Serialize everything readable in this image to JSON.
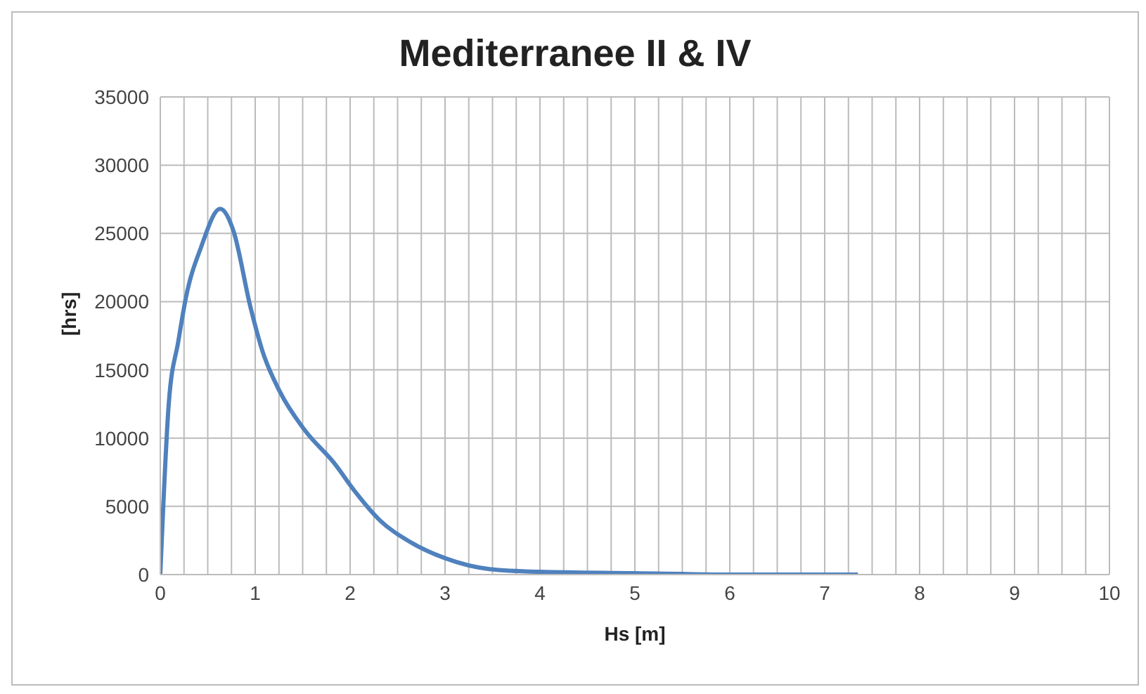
{
  "chart_data": {
    "type": "line",
    "title": "Mediterranee II & IV",
    "xlabel": "Hs [m]",
    "ylabel": "[hrs]",
    "series": [
      {
        "color": "#4f81bd",
        "x": [
          0,
          0.09,
          0.19,
          0.27,
          0.43,
          0.63,
          0.77,
          0.95,
          1.08,
          1.26,
          1.52,
          1.84,
          2.05,
          2.31,
          2.63,
          3.0,
          3.47,
          4.0,
          5.0,
          6.0,
          7.35
        ],
        "values": [
          0,
          12600,
          17100,
          20300,
          24000,
          26800,
          25200,
          19600,
          16300,
          13400,
          10600,
          8100,
          6100,
          4000,
          2400,
          1200,
          400,
          200,
          100,
          0,
          0
        ]
      }
    ],
    "xlim": [
      0,
      10
    ],
    "ylim": [
      0,
      35000
    ],
    "xticks": [
      0,
      {
        "value": 0.25,
        "label": null
      },
      {
        "value": 0.5,
        "label": null
      },
      {
        "value": 0.75,
        "label": null
      },
      1,
      {
        "value": 1.25,
        "label": null
      },
      {
        "value": 1.5,
        "label": null
      },
      {
        "value": 1.75,
        "label": null
      },
      2,
      {
        "value": 2.25,
        "label": null
      },
      {
        "value": 2.5,
        "label": null
      },
      {
        "value": 2.75,
        "label": null
      },
      3,
      {
        "value": 3.25,
        "label": null
      },
      {
        "value": 3.5,
        "label": null
      },
      {
        "value": 3.75,
        "label": null
      },
      4,
      {
        "value": 4.25,
        "label": null
      },
      {
        "value": 4.5,
        "label": null
      },
      {
        "value": 4.75,
        "label": null
      },
      5,
      {
        "value": 5.25,
        "label": null
      },
      {
        "value": 5.5,
        "label": null
      },
      {
        "value": 5.75,
        "label": null
      },
      6,
      {
        "value": 6.25,
        "label": null
      },
      {
        "value": 6.5,
        "label": null
      },
      {
        "value": 6.75,
        "label": null
      },
      7,
      {
        "value": 7.25,
        "label": null
      },
      {
        "value": 7.5,
        "label": null
      },
      {
        "value": 7.75,
        "label": null
      },
      8,
      {
        "value": 8.25,
        "label": null
      },
      {
        "value": 8.5,
        "label": null
      },
      {
        "value": 8.75,
        "label": null
      },
      9,
      {
        "value": 9.25,
        "label": null
      },
      {
        "value": 9.5,
        "label": null
      },
      {
        "value": 9.75,
        "label": null
      },
      10
    ],
    "yticks": [
      0,
      5000,
      10000,
      15000,
      20000,
      25000,
      30000,
      35000
    ],
    "grid": true,
    "marker": "none",
    "line_style": "solid"
  }
}
